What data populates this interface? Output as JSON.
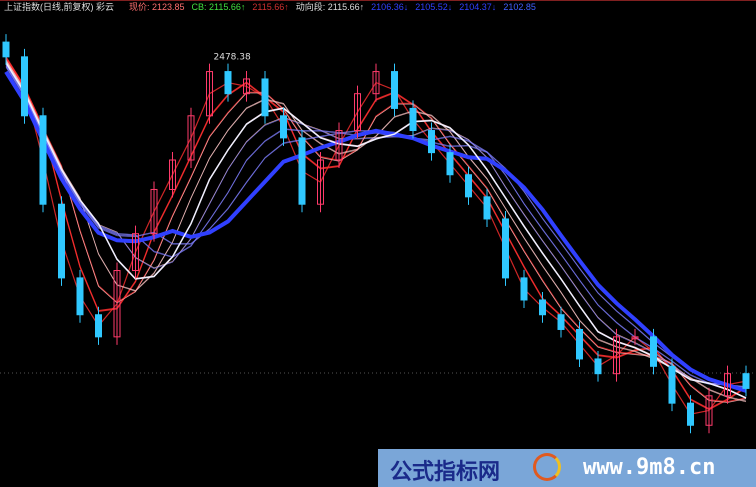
{
  "header": {
    "title": "上证指数(日线,前复权) 彩云",
    "price": "现价: 2123.85",
    "cb": "CB: 2115.66↑",
    "v1": "2115.66↑",
    "trend": "动向段: 2115.66↑",
    "v2": "2106.36↓",
    "v3": "2105.52↓",
    "v4": "2104.37↓",
    "v5": "2102.85"
  },
  "watermark": {
    "site_name": "公式指标网",
    "url": "www.9m8.cn"
  },
  "chart_data": {
    "type": "candlestick",
    "peak_label": "2478.38",
    "ylim": [
      1950,
      2520
    ],
    "close": [
      2470,
      2390,
      2270,
      2170,
      2120,
      2090,
      2180,
      2230,
      2290,
      2330,
      2390,
      2450,
      2420,
      2440,
      2390,
      2360,
      2270,
      2330,
      2370,
      2420,
      2450,
      2400,
      2370,
      2340,
      2310,
      2280,
      2250,
      2170,
      2140,
      2120,
      2100,
      2060,
      2040,
      2090,
      2090,
      2050,
      2000,
      1970,
      2010,
      2040,
      2020
    ],
    "colors": {
      "up": "#ff3b6b",
      "down": "#30c8ff",
      "ribbon_inner": "#ff3030",
      "ribbon_mid": "#ffc8c8",
      "ribbon_outer": "#3040ff"
    }
  }
}
